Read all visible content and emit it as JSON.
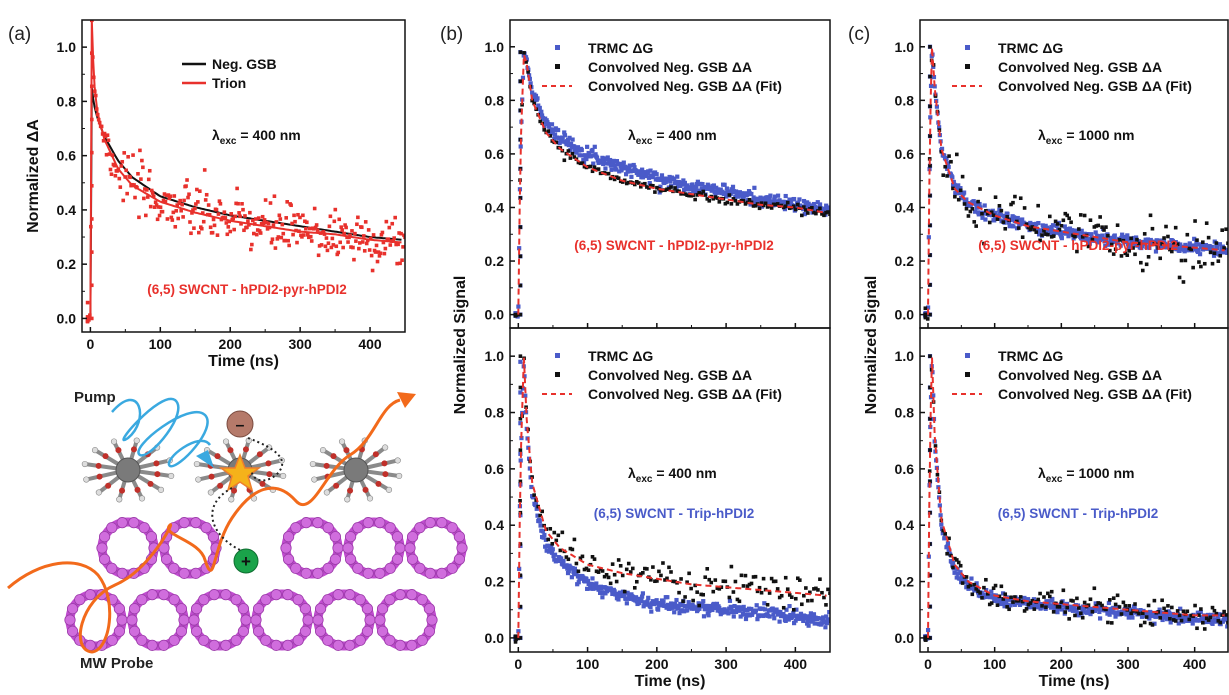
{
  "colors": {
    "black": "#111111",
    "red": "#e8312c",
    "blue": "#4a5bc9",
    "purple": "#c04ccf",
    "orange": "#f26a1b",
    "cyan": "#3aa9e0",
    "hole_green": "#1aa34a",
    "electron_brown": "#b57a6a"
  },
  "panel_labels": [
    "(a)",
    "(b)",
    "(c)"
  ],
  "schematic": {
    "pump_label": "Pump",
    "probe_label": "MW Probe",
    "electron_sign": "–",
    "hole_sign": "+"
  },
  "chart_data": [
    {
      "id": "a",
      "type": "scatter",
      "xlabel": "Time (ns)",
      "ylabel": "Normalized ΔA",
      "xlim": [
        -12,
        450
      ],
      "ylim": [
        -0.05,
        1.1
      ],
      "xticks": [
        0,
        100,
        200,
        300,
        400
      ],
      "yticks": [
        0.0,
        0.2,
        0.4,
        0.6,
        0.8,
        1.0
      ],
      "legend": {
        "placement": "top-right",
        "entries": [
          "Neg. GSB",
          "Trion"
        ]
      },
      "annotation": {
        "main": "λ",
        "sub": "exc",
        "rest": " = 400 nm"
      },
      "system_label": "(6,5) SWCNT - hPDI2-pyr-hPDI2",
      "series": [
        {
          "name": "Neg. GSB",
          "style": "line",
          "color": "black",
          "x": [
            0,
            2,
            5,
            10,
            20,
            40,
            60,
            100,
            150,
            200,
            250,
            300,
            350,
            400,
            445
          ],
          "y": [
            0.0,
            0.85,
            0.79,
            0.74,
            0.67,
            0.58,
            0.52,
            0.45,
            0.41,
            0.38,
            0.36,
            0.34,
            0.32,
            0.3,
            0.29
          ]
        },
        {
          "name": "Trion",
          "style": "scatter+line",
          "color": "red",
          "x": [
            0,
            2,
            5,
            10,
            20,
            40,
            60,
            100,
            150,
            200,
            250,
            300,
            350,
            400,
            445
          ],
          "y": [
            0.0,
            1.1,
            0.88,
            0.76,
            0.66,
            0.55,
            0.49,
            0.43,
            0.39,
            0.36,
            0.34,
            0.32,
            0.31,
            0.29,
            0.28
          ],
          "scatter_noise": 0.05
        }
      ]
    },
    {
      "id": "b-top",
      "type": "scatter",
      "xlim": [
        -12,
        450
      ],
      "ylim": [
        -0.05,
        1.1
      ],
      "xticks": [
        0,
        100,
        200,
        300,
        400
      ],
      "yticks": [
        0.0,
        0.2,
        0.4,
        0.6,
        0.8,
        1.0
      ],
      "legend": {
        "placement": "top-right",
        "entries": [
          "TRMC ΔG",
          "Convolved Neg. GSB ΔA",
          "Convolved Neg. GSB ΔA (Fit)"
        ]
      },
      "annotation": {
        "main": "λ",
        "sub": "exc",
        "rest": " = 400 nm"
      },
      "system_label": "(6,5) SWCNT - hPDI2-pyr-hPDI2",
      "series": [
        {
          "name": "TRMC ΔG",
          "style": "scatter",
          "color": "blue",
          "x": [
            0,
            3,
            8,
            12,
            20,
            40,
            60,
            100,
            150,
            200,
            250,
            300,
            350,
            400,
            445
          ],
          "y": [
            0.0,
            0.6,
            0.98,
            0.95,
            0.83,
            0.72,
            0.66,
            0.6,
            0.55,
            0.51,
            0.48,
            0.46,
            0.43,
            0.41,
            0.39
          ],
          "scatter_noise": 0.012
        },
        {
          "name": "Convolved Neg. GSB ΔA",
          "style": "scatter",
          "color": "black",
          "x": [
            0,
            3,
            8,
            12,
            20,
            40,
            60,
            100,
            150,
            200,
            250,
            300,
            350,
            400,
            445
          ],
          "y": [
            0.0,
            0.6,
            0.98,
            0.94,
            0.8,
            0.68,
            0.62,
            0.55,
            0.5,
            0.47,
            0.45,
            0.43,
            0.41,
            0.4,
            0.38
          ],
          "scatter_noise": 0.008
        },
        {
          "name": "Convolved Neg. GSB ΔA (Fit)",
          "style": "dashed",
          "color": "red",
          "x": [
            0,
            3,
            8,
            12,
            20,
            40,
            60,
            100,
            150,
            200,
            250,
            300,
            350,
            400,
            445
          ],
          "y": [
            0.0,
            0.6,
            0.97,
            0.94,
            0.8,
            0.68,
            0.62,
            0.55,
            0.5,
            0.47,
            0.45,
            0.43,
            0.41,
            0.4,
            0.38
          ]
        }
      ]
    },
    {
      "id": "b-bottom",
      "type": "scatter",
      "xlabel": "Time (ns)",
      "xlim": [
        -12,
        450
      ],
      "ylim": [
        -0.05,
        1.1
      ],
      "xticks": [
        0,
        100,
        200,
        300,
        400
      ],
      "yticks": [
        0.0,
        0.2,
        0.4,
        0.6,
        0.8,
        1.0
      ],
      "legend": {
        "placement": "top-right",
        "entries": [
          "TRMC ΔG",
          "Convolved Neg. GSB ΔA",
          "Convolved Neg. GSB ΔA (Fit)"
        ]
      },
      "annotation": {
        "main": "λ",
        "sub": "exc",
        "rest": " = 400 nm"
      },
      "system_label": "(6,5) SWCNT - Trip-hPDI2",
      "series": [
        {
          "name": "TRMC ΔG",
          "style": "scatter",
          "color": "blue",
          "x": [
            0,
            3,
            8,
            12,
            20,
            40,
            60,
            100,
            150,
            200,
            250,
            300,
            350,
            400,
            445
          ],
          "y": [
            0.0,
            0.6,
            0.98,
            0.75,
            0.5,
            0.33,
            0.27,
            0.19,
            0.15,
            0.12,
            0.11,
            0.1,
            0.09,
            0.08,
            0.06
          ],
          "scatter_noise": 0.012
        },
        {
          "name": "Convolved Neg. GSB ΔA",
          "style": "scatter",
          "color": "black",
          "x": [
            0,
            3,
            8,
            12,
            20,
            40,
            60,
            100,
            150,
            200,
            250,
            300,
            350,
            400,
            445
          ],
          "y": [
            0.0,
            0.6,
            1.0,
            0.78,
            0.55,
            0.38,
            0.32,
            0.26,
            0.23,
            0.21,
            0.19,
            0.18,
            0.17,
            0.16,
            0.15
          ],
          "scatter_noise": 0.03
        },
        {
          "name": "Convolved Neg. GSB ΔA (Fit)",
          "style": "dashed",
          "color": "red",
          "x": [
            0,
            3,
            8,
            12,
            20,
            40,
            60,
            100,
            150,
            200,
            250,
            300,
            350,
            400,
            445
          ],
          "y": [
            0.0,
            0.6,
            1.0,
            0.78,
            0.55,
            0.38,
            0.32,
            0.26,
            0.23,
            0.21,
            0.19,
            0.18,
            0.17,
            0.16,
            0.15
          ]
        }
      ]
    },
    {
      "id": "c-top",
      "type": "scatter",
      "xlim": [
        -12,
        450
      ],
      "ylim": [
        -0.05,
        1.1
      ],
      "xticks": [
        0,
        100,
        200,
        300,
        400
      ],
      "yticks": [
        0.0,
        0.2,
        0.4,
        0.6,
        0.8,
        1.0
      ],
      "legend": {
        "placement": "top-right",
        "entries": [
          "TRMC ΔG",
          "Convolved Neg. GSB ΔA",
          "Convolved Neg. GSB ΔA (Fit)"
        ]
      },
      "annotation": {
        "main": "λ",
        "sub": "exc",
        "rest": " = 1000 nm"
      },
      "system_label": "(6,5) SWCNT - hPDI2-pyr-hPDI2",
      "series": [
        {
          "name": "TRMC ΔG",
          "style": "scatter",
          "color": "blue",
          "x": [
            0,
            3,
            6,
            10,
            20,
            40,
            60,
            100,
            150,
            200,
            250,
            300,
            350,
            400,
            445
          ],
          "y": [
            0.0,
            0.7,
            1.0,
            0.85,
            0.62,
            0.47,
            0.42,
            0.37,
            0.33,
            0.31,
            0.29,
            0.27,
            0.26,
            0.25,
            0.24
          ],
          "scatter_noise": 0.012
        },
        {
          "name": "Convolved Neg. GSB ΔA",
          "style": "scatter",
          "color": "black",
          "x": [
            0,
            3,
            6,
            10,
            20,
            40,
            60,
            100,
            150,
            200,
            250,
            300,
            350,
            400,
            445
          ],
          "y": [
            0.0,
            0.7,
            1.0,
            0.85,
            0.62,
            0.47,
            0.42,
            0.37,
            0.33,
            0.31,
            0.29,
            0.27,
            0.26,
            0.25,
            0.24
          ],
          "scatter_noise": 0.045
        },
        {
          "name": "Convolved Neg. GSB ΔA (Fit)",
          "style": "dashed",
          "color": "red",
          "x": [
            0,
            3,
            6,
            10,
            20,
            40,
            60,
            100,
            150,
            200,
            250,
            300,
            350,
            400,
            445
          ],
          "y": [
            0.0,
            0.7,
            1.0,
            0.85,
            0.62,
            0.47,
            0.42,
            0.37,
            0.33,
            0.31,
            0.29,
            0.27,
            0.26,
            0.25,
            0.24
          ]
        }
      ]
    },
    {
      "id": "c-bottom",
      "type": "scatter",
      "xlabel": "Time (ns)",
      "xlim": [
        -12,
        450
      ],
      "ylim": [
        -0.05,
        1.1
      ],
      "xticks": [
        0,
        100,
        200,
        300,
        400
      ],
      "yticks": [
        0.0,
        0.2,
        0.4,
        0.6,
        0.8,
        1.0
      ],
      "legend": {
        "placement": "top-right",
        "entries": [
          "TRMC ΔG",
          "Convolved Neg. GSB ΔA",
          "Convolved Neg. GSB ΔA (Fit)"
        ]
      },
      "annotation": {
        "main": "λ",
        "sub": "exc",
        "rest": " = 1000 nm"
      },
      "system_label": "(6,5) SWCNT - Trip-hPDI2",
      "series": [
        {
          "name": "TRMC ΔG",
          "style": "scatter",
          "color": "blue",
          "x": [
            0,
            3,
            6,
            10,
            20,
            40,
            60,
            100,
            150,
            200,
            250,
            300,
            350,
            400,
            445
          ],
          "y": [
            0.0,
            0.7,
            1.0,
            0.7,
            0.4,
            0.24,
            0.19,
            0.14,
            0.12,
            0.11,
            0.1,
            0.09,
            0.08,
            0.07,
            0.06
          ],
          "scatter_noise": 0.01
        },
        {
          "name": "Convolved Neg. GSB ΔA",
          "style": "scatter",
          "color": "black",
          "x": [
            0,
            3,
            6,
            10,
            20,
            40,
            60,
            100,
            150,
            200,
            250,
            300,
            350,
            400,
            445
          ],
          "y": [
            0.0,
            0.7,
            1.0,
            0.72,
            0.42,
            0.26,
            0.2,
            0.15,
            0.13,
            0.12,
            0.11,
            0.1,
            0.09,
            0.08,
            0.08
          ],
          "scatter_noise": 0.025
        },
        {
          "name": "Convolved Neg. GSB ΔA (Fit)",
          "style": "dashed",
          "color": "red",
          "x": [
            0,
            3,
            6,
            10,
            20,
            40,
            60,
            100,
            150,
            200,
            250,
            300,
            350,
            400,
            445
          ],
          "y": [
            0.0,
            0.7,
            1.0,
            0.72,
            0.42,
            0.26,
            0.2,
            0.15,
            0.13,
            0.12,
            0.11,
            0.1,
            0.09,
            0.08,
            0.08
          ]
        }
      ]
    }
  ],
  "shared_ylabel": "Normalized Signal"
}
